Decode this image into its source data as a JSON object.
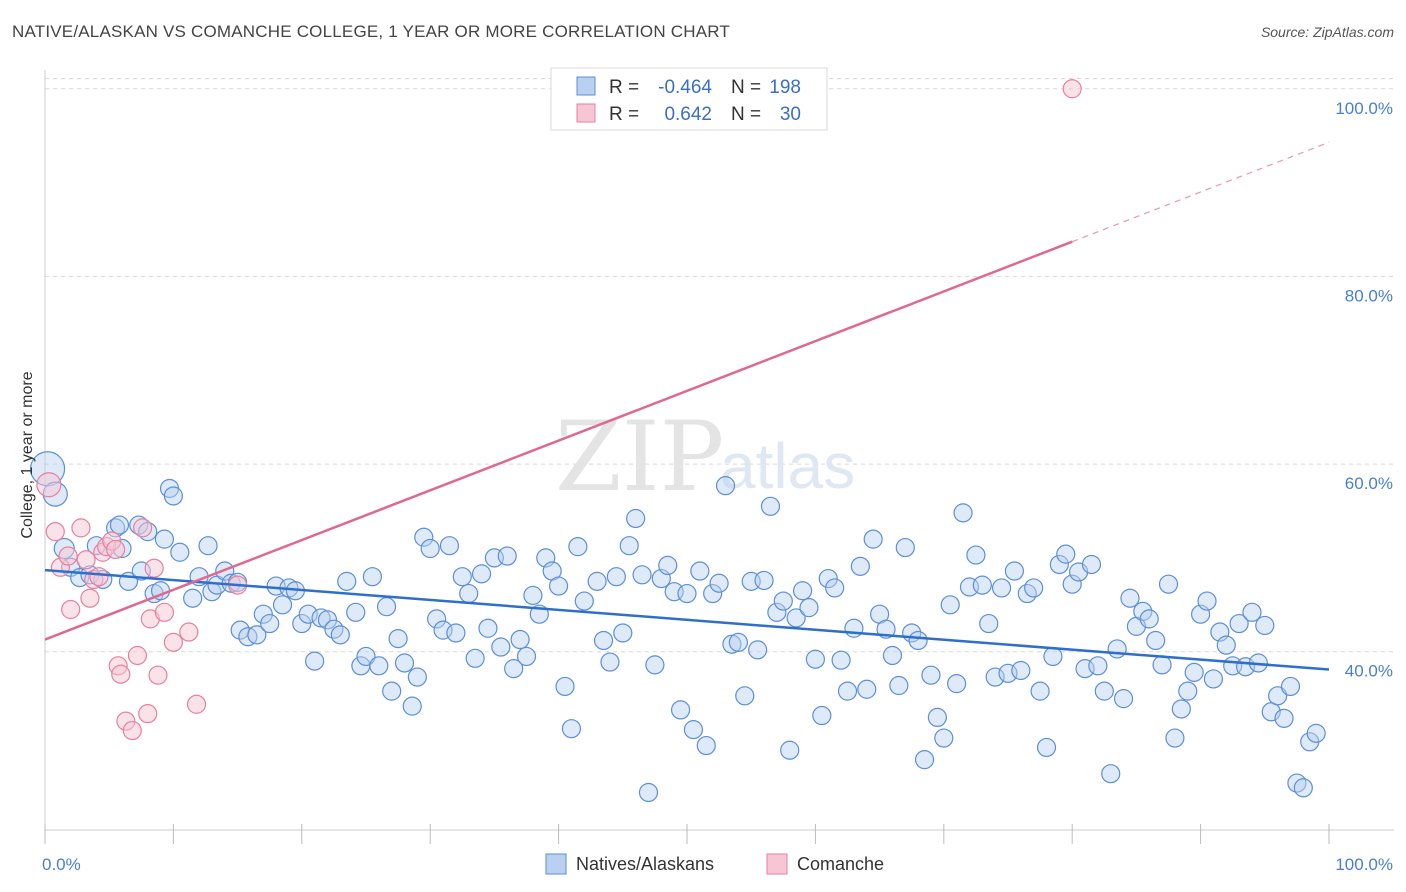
{
  "title": "NATIVE/ALASKAN VS COMANCHE COLLEGE, 1 YEAR OR MORE CORRELATION CHART",
  "source": "Source: ZipAtlas.com",
  "watermark": {
    "zip": "ZIP",
    "atlas": "atlas"
  },
  "colors": {
    "blue": "#5b8fd8",
    "blue_fill": "#b9d0f0",
    "blue_line": "#2f6fcc",
    "pink": "#e7809f",
    "pink_fill": "#f6c6d4",
    "pink_line": "#e06890",
    "grid": "#d8d8d8",
    "tick_text": "#4a7fcf"
  },
  "legend": {
    "rows": [
      {
        "r_label": "R =",
        "r_value": "-0.464",
        "n_label": "N =",
        "n_value": "198"
      },
      {
        "r_label": "R =",
        "r_value": "0.642",
        "n_label": "N =",
        "n_value": "30"
      }
    ]
  },
  "bottom_legend": [
    "Natives/Alaskans",
    "Comanche"
  ],
  "chart_data": {
    "type": "scatter",
    "title": "NATIVE/ALASKAN VS COMANCHE COLLEGE, 1 YEAR OR MORE CORRELATION CHART",
    "xlabel": "",
    "ylabel": "College, 1 year or more",
    "xlim": [
      0,
      100
    ],
    "ylim": [
      21,
      102
    ],
    "x_tick_labels": [
      "0.0%",
      "100.0%"
    ],
    "y_ticks": [
      40,
      60,
      80,
      100
    ],
    "y_tick_labels": [
      "40.0%",
      "60.0%",
      "80.0%",
      "100.0%"
    ],
    "grid": true,
    "series": [
      {
        "name": "Natives/Alaskans",
        "trend": {
          "x": [
            0,
            100
          ],
          "y": [
            48.7,
            38.1
          ]
        },
        "points": [
          [
            0.2,
            59.5
          ],
          [
            0.8,
            56.8
          ],
          [
            1.5,
            51
          ],
          [
            2,
            49
          ],
          [
            2.7,
            47.9
          ],
          [
            3.5,
            48.2
          ],
          [
            4,
            51.3
          ],
          [
            4.5,
            47.7
          ],
          [
            5.5,
            53.2
          ],
          [
            5.8,
            53.5
          ],
          [
            6,
            51
          ],
          [
            6.5,
            47.5
          ],
          [
            7.3,
            53.5
          ],
          [
            7.5,
            48.6
          ],
          [
            8,
            52.8
          ],
          [
            8.5,
            46.2
          ],
          [
            9,
            46.5
          ],
          [
            9.3,
            52
          ],
          [
            9.7,
            57.4
          ],
          [
            10,
            56.6
          ],
          [
            10.5,
            50.6
          ],
          [
            11.5,
            45.7
          ],
          [
            12,
            48
          ],
          [
            12.7,
            51.3
          ],
          [
            13,
            46.4
          ],
          [
            13.4,
            47.1
          ],
          [
            14,
            48.6
          ],
          [
            14.5,
            47.3
          ],
          [
            15,
            47.4
          ],
          [
            15.2,
            42.3
          ],
          [
            15.8,
            41.6
          ],
          [
            16.5,
            41.8
          ],
          [
            17,
            44
          ],
          [
            17.5,
            43
          ],
          [
            18,
            47
          ],
          [
            18.5,
            45
          ],
          [
            19,
            46.8
          ],
          [
            19.5,
            46.5
          ],
          [
            20,
            43
          ],
          [
            20.5,
            44
          ],
          [
            21,
            39
          ],
          [
            21.5,
            43.6
          ],
          [
            22,
            43.4
          ],
          [
            22.5,
            42.4
          ],
          [
            23,
            41.8
          ],
          [
            23.5,
            47.5
          ],
          [
            24.2,
            44.2
          ],
          [
            24.6,
            38.5
          ],
          [
            25,
            39.5
          ],
          [
            25.5,
            48
          ],
          [
            26,
            38.5
          ],
          [
            26.6,
            44.8
          ],
          [
            27,
            35.8
          ],
          [
            27.5,
            41.4
          ],
          [
            28,
            38.8
          ],
          [
            28.6,
            34.2
          ],
          [
            29,
            37.3
          ],
          [
            29.5,
            52.2
          ],
          [
            30,
            51
          ],
          [
            30.5,
            43.5
          ],
          [
            31,
            42.3
          ],
          [
            31.5,
            51.3
          ],
          [
            32,
            42
          ],
          [
            32.5,
            48
          ],
          [
            33,
            46.2
          ],
          [
            33.5,
            39.3
          ],
          [
            34,
            48.3
          ],
          [
            34.5,
            42.5
          ],
          [
            35,
            50
          ],
          [
            35.5,
            40.5
          ],
          [
            36,
            50.2
          ],
          [
            36.5,
            38.2
          ],
          [
            37,
            41.3
          ],
          [
            37.5,
            39.5
          ],
          [
            38,
            46
          ],
          [
            38.5,
            44
          ],
          [
            39,
            50
          ],
          [
            39.5,
            48.6
          ],
          [
            40,
            47
          ],
          [
            40.5,
            36.3
          ],
          [
            41,
            31.8
          ],
          [
            41.5,
            51.2
          ],
          [
            42,
            45.4
          ],
          [
            43,
            47.5
          ],
          [
            43.5,
            41.2
          ],
          [
            44,
            38.9
          ],
          [
            44.5,
            48
          ],
          [
            45,
            42
          ],
          [
            45.5,
            51.3
          ],
          [
            46,
            54.2
          ],
          [
            46.5,
            48.2
          ],
          [
            47,
            25
          ],
          [
            47.5,
            38.6
          ],
          [
            48,
            47.8
          ],
          [
            48.5,
            49.2
          ],
          [
            49,
            46.4
          ],
          [
            49.5,
            33.8
          ],
          [
            50,
            46.2
          ],
          [
            50.5,
            31.7
          ],
          [
            51,
            48.6
          ],
          [
            51.5,
            30
          ],
          [
            52,
            46.2
          ],
          [
            52.5,
            47.3
          ],
          [
            53,
            57.7
          ],
          [
            53.5,
            40.8
          ],
          [
            54,
            41
          ],
          [
            54.5,
            35.3
          ],
          [
            55,
            47.5
          ],
          [
            55.5,
            40.2
          ],
          [
            56,
            47.6
          ],
          [
            56.5,
            55.5
          ],
          [
            57,
            44.2
          ],
          [
            57.5,
            45.4
          ],
          [
            58,
            29.5
          ],
          [
            58.5,
            43.6
          ],
          [
            59,
            46.5
          ],
          [
            59.5,
            44.7
          ],
          [
            60,
            39.2
          ],
          [
            60.5,
            33.2
          ],
          [
            61,
            47.8
          ],
          [
            61.5,
            46.8
          ],
          [
            62,
            39.1
          ],
          [
            62.5,
            35.8
          ],
          [
            63,
            42.5
          ],
          [
            63.5,
            49.1
          ],
          [
            64,
            36
          ],
          [
            64.5,
            52
          ],
          [
            65,
            44
          ],
          [
            65.5,
            42.4
          ],
          [
            66,
            39.6
          ],
          [
            66.5,
            36.4
          ],
          [
            67,
            51.1
          ],
          [
            67.5,
            42
          ],
          [
            68,
            41.2
          ],
          [
            68.5,
            28.5
          ],
          [
            69,
            37.5
          ],
          [
            69.5,
            33
          ],
          [
            70,
            30.8
          ],
          [
            70.5,
            45
          ],
          [
            71,
            36.6
          ],
          [
            71.5,
            54.8
          ],
          [
            72,
            46.9
          ],
          [
            72.5,
            50.3
          ],
          [
            73,
            47.1
          ],
          [
            73.5,
            43
          ],
          [
            74,
            37.3
          ],
          [
            74.5,
            46.8
          ],
          [
            75,
            37.7
          ],
          [
            75.5,
            48.6
          ],
          [
            76,
            38
          ],
          [
            76.5,
            46.2
          ],
          [
            77,
            46.8
          ],
          [
            77.5,
            35.8
          ],
          [
            78,
            29.8
          ],
          [
            78.5,
            39.5
          ],
          [
            79,
            49.3
          ],
          [
            79.5,
            50.4
          ],
          [
            80,
            47.2
          ],
          [
            80.5,
            48.5
          ],
          [
            81,
            38.2
          ],
          [
            81.5,
            49.3
          ],
          [
            82,
            38.5
          ],
          [
            82.5,
            35.8
          ],
          [
            83,
            27
          ],
          [
            83.5,
            40.3
          ],
          [
            84,
            35
          ],
          [
            84.5,
            45.7
          ],
          [
            85,
            42.7
          ],
          [
            85.5,
            44.3
          ],
          [
            86,
            43.5
          ],
          [
            86.5,
            41.2
          ],
          [
            87,
            38.6
          ],
          [
            87.5,
            47.2
          ],
          [
            88,
            30.8
          ],
          [
            88.5,
            33.9
          ],
          [
            89,
            35.8
          ],
          [
            89.5,
            37.8
          ],
          [
            90,
            44
          ],
          [
            90.5,
            45.4
          ],
          [
            91,
            37.1
          ],
          [
            91.5,
            42.1
          ],
          [
            92,
            40.7
          ],
          [
            92.5,
            38.5
          ],
          [
            93,
            43
          ],
          [
            93.5,
            38.4
          ],
          [
            94,
            44.2
          ],
          [
            94.5,
            38.8
          ],
          [
            95,
            42.8
          ],
          [
            95.5,
            33.6
          ],
          [
            96,
            35.3
          ],
          [
            96.5,
            32.9
          ],
          [
            97,
            36.3
          ],
          [
            97.5,
            26
          ],
          [
            98,
            25.5
          ],
          [
            98.5,
            30.4
          ],
          [
            99,
            31.3
          ]
        ]
      },
      {
        "name": "Comanche",
        "trend": {
          "x": [
            0,
            80
          ],
          "y": [
            41.3,
            83.7
          ]
        },
        "trend_dashed": {
          "x": [
            80,
            100
          ],
          "y": [
            83.7,
            94.3
          ]
        },
        "points": [
          [
            0.3,
            57.8
          ],
          [
            0.8,
            52.8
          ],
          [
            1.2,
            49
          ],
          [
            1.8,
            50.2
          ],
          [
            2,
            44.5
          ],
          [
            2.8,
            53.2
          ],
          [
            3.2,
            49.8
          ],
          [
            3.5,
            45.7
          ],
          [
            3.8,
            47.7
          ],
          [
            4.2,
            48
          ],
          [
            4.5,
            50.6
          ],
          [
            4.8,
            51.2
          ],
          [
            5.2,
            51.8
          ],
          [
            5.5,
            50.9
          ],
          [
            5.7,
            38.5
          ],
          [
            5.9,
            37.6
          ],
          [
            6.3,
            32.6
          ],
          [
            6.8,
            31.6
          ],
          [
            7.2,
            39.6
          ],
          [
            7.6,
            53.2
          ],
          [
            8,
            33.4
          ],
          [
            8.2,
            43.5
          ],
          [
            8.5,
            48.9
          ],
          [
            8.8,
            37.5
          ],
          [
            9.3,
            44.2
          ],
          [
            10,
            41
          ],
          [
            11.2,
            42.1
          ],
          [
            11.8,
            34.4
          ],
          [
            15,
            47.1
          ],
          [
            80,
            100
          ]
        ]
      }
    ]
  }
}
